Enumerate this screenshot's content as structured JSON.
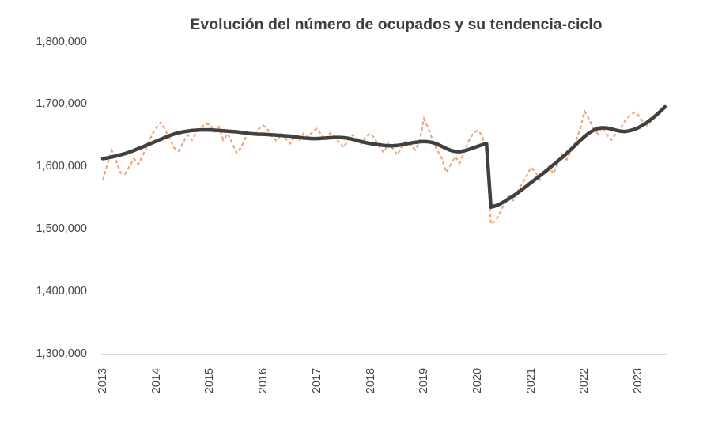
{
  "chart_data": {
    "type": "line",
    "title": "Evolución del número de ocupados y su tendencia-ciclo",
    "xlabel": "",
    "ylabel": "",
    "ylim": [
      1300000,
      1800000
    ],
    "grid": false,
    "legend_position": "none",
    "x_period_start": "2013-01",
    "x_period_end": "2023-07",
    "x_ticks": [
      "2013",
      "2014",
      "2015",
      "2016",
      "2017",
      "2018",
      "2019",
      "2020",
      "2021",
      "2022",
      "2023"
    ],
    "y_ticks": [
      {
        "label": "1,300,000",
        "value": 1300000
      },
      {
        "label": "1,400,000",
        "value": 1400000
      },
      {
        "label": "1,500,000",
        "value": 1500000
      },
      {
        "label": "1,600,000",
        "value": 1600000
      },
      {
        "label": "1,700,000",
        "value": 1700000
      },
      {
        "label": "1,800,000",
        "value": 1800000
      }
    ],
    "series": [
      {
        "name": "Número de ocupados",
        "style": "dashed",
        "color": "#F1A57C",
        "stroke_width": 2.2,
        "values": [
          1578000,
          1603000,
          1626000,
          1609000,
          1590000,
          1588000,
          1601000,
          1613000,
          1604000,
          1619000,
          1633000,
          1651000,
          1663000,
          1671000,
          1659000,
          1645000,
          1630000,
          1625000,
          1639000,
          1651000,
          1643000,
          1656000,
          1663000,
          1668000,
          1668000,
          1656000,
          1664000,
          1643000,
          1653000,
          1638000,
          1622000,
          1631000,
          1646000,
          1656000,
          1649000,
          1661000,
          1666000,
          1659000,
          1648000,
          1641000,
          1653000,
          1645000,
          1637000,
          1649000,
          1641000,
          1653000,
          1647000,
          1656000,
          1661000,
          1651000,
          1643000,
          1654000,
          1647000,
          1639000,
          1631000,
          1643000,
          1651000,
          1645000,
          1637000,
          1649000,
          1653000,
          1645000,
          1631000,
          1623000,
          1637000,
          1629000,
          1619000,
          1631000,
          1641000,
          1635000,
          1627000,
          1641000,
          1677000,
          1661000,
          1641000,
          1626000,
          1613000,
          1591000,
          1603000,
          1616000,
          1606000,
          1623000,
          1641000,
          1653000,
          1658000,
          1651000,
          1621000,
          1508000,
          1513000,
          1526000,
          1541000,
          1553000,
          1546000,
          1561000,
          1573000,
          1586000,
          1599000,
          1591000,
          1579000,
          1593000,
          1601000,
          1589000,
          1606000,
          1619000,
          1611000,
          1626000,
          1641000,
          1661000,
          1689000,
          1676000,
          1661000,
          1653000,
          1663000,
          1651000,
          1643000,
          1653000,
          1661000,
          1673000,
          1681000,
          1687000,
          1683000,
          1673000,
          1666000,
          1674000,
          1681000,
          1691000,
          1698000
        ]
      },
      {
        "name": "Tendencia-ciclo",
        "style": "solid",
        "color": "#404040",
        "stroke_width": 4.5,
        "values": [
          1613000,
          1614000,
          1615500,
          1617000,
          1619000,
          1621000,
          1623500,
          1626000,
          1629000,
          1632000,
          1635000,
          1638000,
          1641000,
          1644000,
          1647000,
          1650000,
          1652500,
          1654500,
          1656000,
          1657000,
          1658000,
          1658500,
          1659000,
          1659000,
          1659000,
          1658500,
          1658000,
          1657500,
          1657000,
          1656500,
          1656000,
          1655000,
          1654000,
          1653000,
          1652500,
          1652000,
          1652000,
          1651500,
          1651000,
          1650500,
          1650000,
          1649500,
          1649000,
          1648000,
          1647000,
          1646000,
          1645500,
          1645000,
          1645000,
          1645500,
          1646000,
          1646500,
          1647000,
          1647000,
          1646500,
          1645500,
          1644000,
          1642000,
          1640000,
          1638500,
          1637000,
          1636000,
          1635000,
          1634000,
          1633500,
          1633500,
          1634000,
          1635000,
          1636500,
          1638000,
          1639000,
          1640000,
          1640500,
          1640000,
          1638500,
          1636000,
          1632500,
          1629000,
          1626000,
          1624500,
          1624000,
          1625500,
          1627500,
          1630000,
          1632500,
          1635000,
          1637000,
          1535000,
          1537000,
          1540000,
          1544000,
          1548500,
          1553000,
          1558000,
          1563500,
          1569000,
          1574500,
          1580000,
          1585500,
          1591000,
          1597000,
          1603000,
          1609000,
          1615000,
          1621500,
          1628000,
          1635000,
          1642000,
          1648500,
          1654000,
          1658500,
          1661500,
          1662500,
          1662000,
          1660500,
          1658500,
          1657000,
          1656500,
          1657500,
          1659500,
          1662500,
          1666500,
          1671000,
          1676500,
          1682500,
          1689000,
          1696000
        ]
      }
    ],
    "colors": {
      "axis_line": "#D9D9D9",
      "tick_text": "#444444",
      "title_text": "#3E3E3E",
      "background": "#FFFFFF"
    }
  }
}
